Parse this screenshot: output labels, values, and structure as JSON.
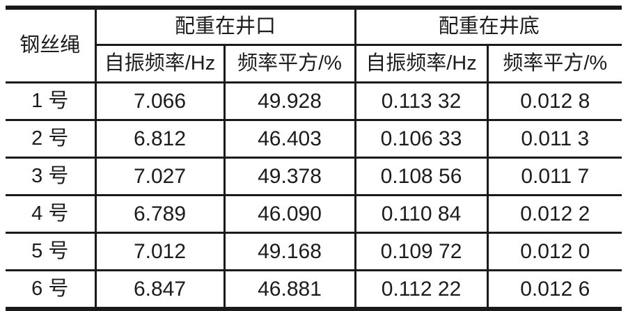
{
  "table": {
    "corner_header": "钢丝绳",
    "group_headers": [
      "配重在井口",
      "配重在井底"
    ],
    "sub_headers": [
      "自振频率/Hz",
      "频率平方/%",
      "自振频率/Hz",
      "频率平方/%"
    ],
    "rows": [
      {
        "label": "1 号",
        "values": [
          "7.066",
          "49.928",
          "0.113 32",
          "0.012 8"
        ]
      },
      {
        "label": "2 号",
        "values": [
          "6.812",
          "46.403",
          "0.106 33",
          "0.011 3"
        ]
      },
      {
        "label": "3 号",
        "values": [
          "7.027",
          "49.378",
          "0.108 56",
          "0.011 7"
        ]
      },
      {
        "label": "4 号",
        "values": [
          "6.789",
          "46.090",
          "0.110 84",
          "0.012 2"
        ]
      },
      {
        "label": "5 号",
        "values": [
          "7.012",
          "49.168",
          "0.109 72",
          "0.012 0"
        ]
      },
      {
        "label": "6 号",
        "values": [
          "6.847",
          "46.881",
          "0.112 22",
          "0.012 6"
        ]
      }
    ]
  },
  "colors": {
    "border": "#1a1a1a",
    "text": "#1c1c1c",
    "background": "#ffffff"
  }
}
